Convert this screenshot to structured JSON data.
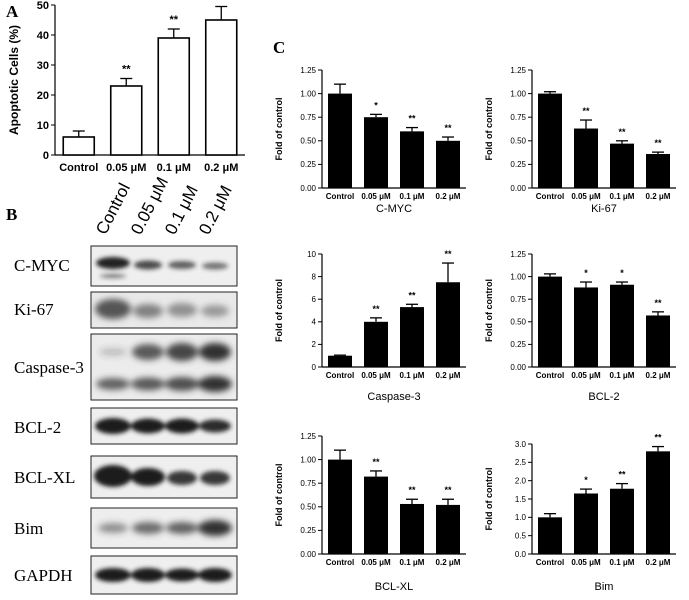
{
  "panels": {
    "a": "A",
    "b": "B",
    "c": "C"
  },
  "western_blot": {
    "lanes": [
      "Control",
      "0.05 μM",
      "0.1 μM",
      "0.2 μM"
    ],
    "proteins": [
      "C-MYC",
      "Ki-67",
      "Caspase-3",
      "BCL-2",
      "BCL-XL",
      "Bim",
      "GAPDH"
    ]
  },
  "chart_data": [
    {
      "id": "apoptosis",
      "type": "bar",
      "style": "open",
      "categories": [
        "Control",
        "0.05 μM",
        "0.1 μM",
        "0.2 μM"
      ],
      "values": [
        6,
        23,
        39,
        45
      ],
      "errors": [
        2,
        2.5,
        3,
        4.5
      ],
      "significance": [
        "",
        "**",
        "**",
        "**"
      ],
      "title": "",
      "xlabel": "",
      "ylabel": "Apoptotic Cells (%)",
      "ylim": [
        0,
        50
      ],
      "yticks": [
        0,
        10,
        20,
        30,
        40,
        50
      ]
    },
    {
      "id": "cmyc",
      "type": "bar",
      "categories": [
        "Control",
        "0.05 μM",
        "0.1 μM",
        "0.2 μM"
      ],
      "values": [
        1.0,
        0.75,
        0.6,
        0.5
      ],
      "errors": [
        0.1,
        0.03,
        0.04,
        0.04
      ],
      "significance": [
        "",
        "*",
        "**",
        "**"
      ],
      "title": "C-MYC",
      "ylabel": "Fold of control",
      "ylim": [
        0,
        1.25
      ],
      "yticks": [
        "0.00",
        "0.25",
        "0.50",
        "0.75",
        "1.00",
        "1.25"
      ]
    },
    {
      "id": "ki67",
      "type": "bar",
      "categories": [
        "Control",
        "0.05 μM",
        "0.1 μM",
        "0.2 μM"
      ],
      "values": [
        1.0,
        0.63,
        0.47,
        0.36
      ],
      "errors": [
        0.02,
        0.09,
        0.03,
        0.02
      ],
      "significance": [
        "",
        "**",
        "**",
        "**"
      ],
      "title": "Ki-67",
      "ylabel": "Fold of control",
      "ylim": [
        0,
        1.25
      ],
      "yticks": [
        "0.00",
        "0.25",
        "0.50",
        "0.75",
        "1.00",
        "1.25"
      ]
    },
    {
      "id": "caspase3",
      "type": "bar",
      "categories": [
        "Control",
        "0.05 μM",
        "0.1 μM",
        "0.2 μM"
      ],
      "values": [
        1.0,
        4.0,
        5.3,
        7.5
      ],
      "errors": [
        0.05,
        0.35,
        0.25,
        1.7
      ],
      "significance": [
        "",
        "**",
        "**",
        "**"
      ],
      "title": "Caspase-3",
      "ylabel": "Fold of control",
      "ylim": [
        0,
        10
      ],
      "yticks": [
        "0",
        "2",
        "4",
        "6",
        "8",
        "10"
      ]
    },
    {
      "id": "bcl2",
      "type": "bar",
      "categories": [
        "Control",
        "0.05 μM",
        "0.1 μM",
        "0.2 μM"
      ],
      "values": [
        1.0,
        0.88,
        0.91,
        0.57
      ],
      "errors": [
        0.03,
        0.06,
        0.03,
        0.04
      ],
      "significance": [
        "",
        "*",
        "*",
        "**"
      ],
      "title": "BCL-2",
      "ylabel": "Fold of control",
      "ylim": [
        0,
        1.25
      ],
      "yticks": [
        "0.00",
        "0.25",
        "0.50",
        "0.75",
        "1.00",
        "1.25"
      ]
    },
    {
      "id": "bclxl",
      "type": "bar",
      "categories": [
        "Control",
        "0.05 μM",
        "0.1 μM",
        "0.2 μM"
      ],
      "values": [
        1.0,
        0.82,
        0.53,
        0.52
      ],
      "errors": [
        0.1,
        0.06,
        0.05,
        0.06
      ],
      "significance": [
        "",
        "**",
        "**",
        "**"
      ],
      "title": "BCL-XL",
      "ylabel": "Fold of control",
      "ylim": [
        0,
        1.25
      ],
      "yticks": [
        "0.00",
        "0.25",
        "0.50",
        "0.75",
        "1.00",
        "1.25"
      ]
    },
    {
      "id": "bim",
      "type": "bar",
      "categories": [
        "Control",
        "0.05 μM",
        "0.1 μM",
        "0.2 μM"
      ],
      "values": [
        1.0,
        1.65,
        1.78,
        2.8
      ],
      "errors": [
        0.1,
        0.12,
        0.14,
        0.13
      ],
      "significance": [
        "",
        "*",
        "**",
        "**"
      ],
      "title": "Bim",
      "ylabel": "Fold of control",
      "ylim": [
        0,
        3.0
      ],
      "yticks": [
        "0.0",
        "0.5",
        "1.0",
        "1.5",
        "2.0",
        "2.5",
        "3.0"
      ]
    }
  ]
}
